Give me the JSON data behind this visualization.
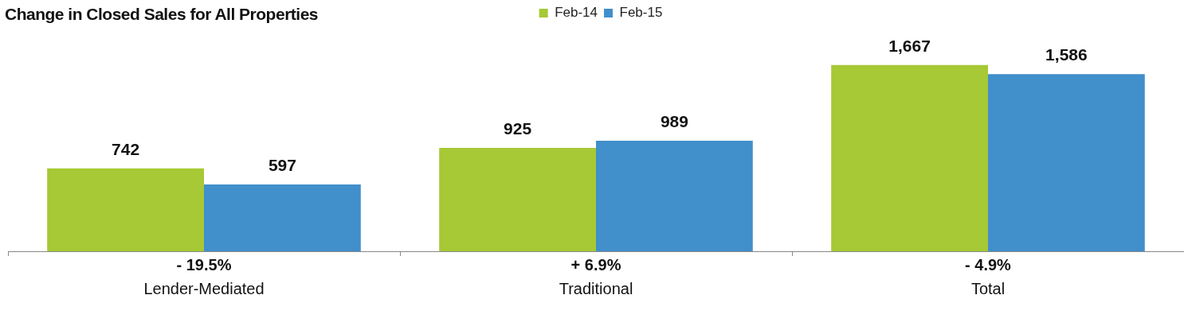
{
  "chart_data": {
    "type": "bar",
    "title": "Change in Closed Sales for All Properties",
    "categories": [
      "Lender-Mediated",
      "Traditional",
      "Total"
    ],
    "series": [
      {
        "name": "Feb-14",
        "color": "#a6c935",
        "values": [
          742,
          925,
          1667
        ],
        "value_labels": [
          "742",
          "925",
          "1,667"
        ]
      },
      {
        "name": "Feb-15",
        "color": "#418fcb",
        "values": [
          597,
          989,
          1586
        ],
        "value_labels": [
          "597",
          "989",
          "1,586"
        ]
      }
    ],
    "tick_labels": "x",
    "legend": "top",
    "annotations": [
      "- 19.5%",
      "+ 6.9%",
      "- 4.9%"
    ]
  }
}
